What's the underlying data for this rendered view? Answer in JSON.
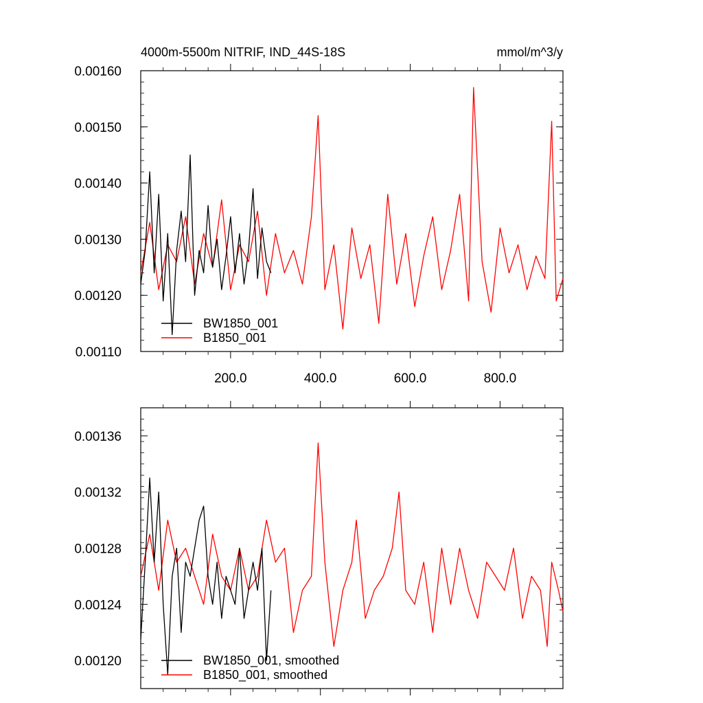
{
  "chart_data": [
    {
      "type": "line",
      "title": "4000m-5500m NITRIF, IND_44S-18S",
      "units": "mmol/m^3/y",
      "xlim": [
        0,
        940
      ],
      "ylim": [
        0.0011,
        0.0016
      ],
      "x_ticks": [
        200,
        400,
        600,
        800
      ],
      "x_tick_labels": [
        "200.0",
        "400.0",
        "600.0",
        "800.0"
      ],
      "y_ticks": [
        0.0011,
        0.0012,
        0.0013,
        0.0014,
        0.0015,
        0.0016
      ],
      "y_tick_labels": [
        "0.00110",
        "0.00120",
        "0.00130",
        "0.00140",
        "0.00150",
        "0.00160"
      ],
      "legend_position": "bottom-left",
      "grid": false,
      "series": [
        {
          "name": "BW1850_001",
          "color": "#000000",
          "x": [
            0,
            10,
            20,
            30,
            40,
            50,
            60,
            70,
            80,
            90,
            100,
            110,
            120,
            130,
            140,
            150,
            160,
            170,
            180,
            190,
            200,
            210,
            220,
            230,
            240,
            250,
            260,
            270,
            280,
            290
          ],
          "y": [
            0.00122,
            0.00128,
            0.00142,
            0.00124,
            0.00138,
            0.00119,
            0.00131,
            0.00113,
            0.00128,
            0.00135,
            0.00126,
            0.00145,
            0.0012,
            0.00128,
            0.00124,
            0.00136,
            0.00125,
            0.0013,
            0.00121,
            0.00127,
            0.00134,
            0.00124,
            0.00131,
            0.00122,
            0.00128,
            0.00139,
            0.00123,
            0.00132,
            0.00126,
            0.00124
          ]
        },
        {
          "name": "B1850_001",
          "color": "#ff0000",
          "x": [
            0,
            20,
            40,
            60,
            80,
            100,
            120,
            140,
            160,
            180,
            200,
            220,
            240,
            260,
            280,
            300,
            320,
            340,
            360,
            380,
            395,
            410,
            430,
            450,
            470,
            490,
            510,
            530,
            550,
            570,
            590,
            610,
            630,
            650,
            670,
            690,
            710,
            730,
            741,
            760,
            780,
            800,
            820,
            840,
            860,
            880,
            900,
            915,
            925,
            940
          ],
          "y": [
            0.00124,
            0.00133,
            0.00121,
            0.00129,
            0.00126,
            0.00134,
            0.00122,
            0.00131,
            0.00125,
            0.00137,
            0.00121,
            0.00129,
            0.00126,
            0.00135,
            0.0012,
            0.00131,
            0.00124,
            0.00128,
            0.00122,
            0.00134,
            0.00152,
            0.00121,
            0.00129,
            0.00114,
            0.00132,
            0.00123,
            0.00129,
            0.00115,
            0.00138,
            0.00122,
            0.00131,
            0.00118,
            0.00127,
            0.00134,
            0.00121,
            0.00128,
            0.00138,
            0.00119,
            0.00157,
            0.00126,
            0.00117,
            0.00132,
            0.00124,
            0.00129,
            0.00121,
            0.00127,
            0.00123,
            0.00151,
            0.00119,
            0.00123
          ]
        }
      ],
      "legend": [
        {
          "label": "BW1850_001",
          "color": "#000000"
        },
        {
          "label": "B1850_001",
          "color": "#ff0000"
        }
      ]
    },
    {
      "type": "line",
      "xlim": [
        0,
        940
      ],
      "ylim": [
        0.00118,
        0.00138
      ],
      "y_ticks": [
        0.0012,
        0.00124,
        0.00128,
        0.00132,
        0.00136
      ],
      "y_tick_labels": [
        "0.00120",
        "0.00124",
        "0.00128",
        "0.00132",
        "0.00136"
      ],
      "legend_position": "bottom-left",
      "grid": false,
      "series": [
        {
          "name": "BW1850_001, smoothed",
          "color": "#000000",
          "x": [
            0,
            10,
            20,
            30,
            40,
            50,
            60,
            70,
            80,
            90,
            100,
            110,
            120,
            130,
            140,
            150,
            160,
            170,
            180,
            190,
            200,
            210,
            220,
            230,
            240,
            250,
            260,
            270,
            280,
            290
          ],
          "y": [
            0.001215,
            0.00127,
            0.00133,
            0.00127,
            0.00132,
            0.00124,
            0.00119,
            0.00126,
            0.00128,
            0.00122,
            0.00127,
            0.00126,
            0.00128,
            0.0013,
            0.00131,
            0.00126,
            0.00124,
            0.00127,
            0.00123,
            0.00126,
            0.00125,
            0.00124,
            0.00128,
            0.00123,
            0.00125,
            0.00127,
            0.00125,
            0.00128,
            0.0012,
            0.00125
          ]
        },
        {
          "name": "B1850_001, smoothed",
          "color": "#ff0000",
          "x": [
            0,
            20,
            40,
            60,
            80,
            100,
            120,
            140,
            160,
            180,
            200,
            220,
            240,
            260,
            280,
            300,
            320,
            340,
            360,
            380,
            395,
            410,
            430,
            450,
            470,
            480,
            500,
            520,
            540,
            560,
            575,
            590,
            610,
            630,
            650,
            670,
            690,
            710,
            730,
            750,
            770,
            790,
            810,
            830,
            850,
            870,
            890,
            905,
            915,
            930,
            940
          ],
          "y": [
            0.00126,
            0.00129,
            0.00125,
            0.0013,
            0.00127,
            0.00128,
            0.00126,
            0.00124,
            0.00129,
            0.00126,
            0.00125,
            0.00128,
            0.00125,
            0.00126,
            0.0013,
            0.00127,
            0.00128,
            0.00122,
            0.00125,
            0.00126,
            0.001355,
            0.00127,
            0.00121,
            0.00125,
            0.00127,
            0.0013,
            0.00123,
            0.00125,
            0.00126,
            0.00128,
            0.00132,
            0.00125,
            0.00124,
            0.00127,
            0.00122,
            0.00128,
            0.00124,
            0.00128,
            0.00125,
            0.00123,
            0.00127,
            0.00126,
            0.00125,
            0.00128,
            0.00123,
            0.00126,
            0.00125,
            0.00121,
            0.00127,
            0.00125,
            0.001235
          ]
        }
      ],
      "legend": [
        {
          "label": "BW1850_001, smoothed",
          "color": "#000000"
        },
        {
          "label": "B1850_001, smoothed",
          "color": "#ff0000"
        }
      ]
    }
  ]
}
